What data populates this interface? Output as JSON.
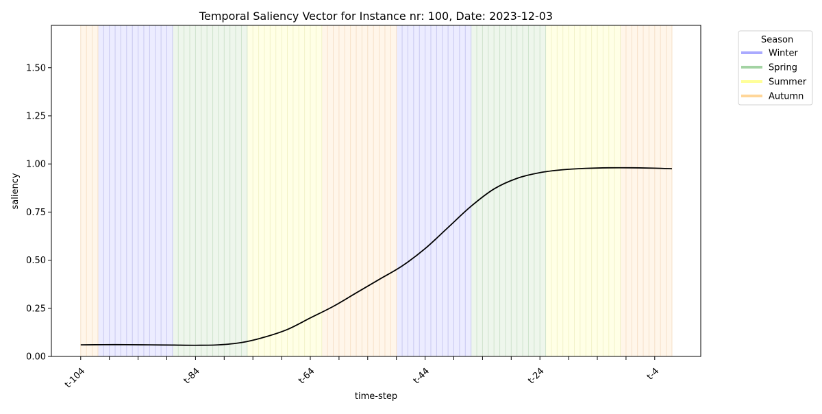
{
  "chart_data": {
    "type": "line",
    "title": "Temporal Saliency Vector for Instance nr: 100, Date: 2023-12-03",
    "xlabel": "time-step",
    "ylabel": "saliency",
    "ylim": [
      0,
      1.72
    ],
    "xlim": [
      -109,
      -2
    ],
    "yticks": [
      "0.00",
      "0.25",
      "0.50",
      "0.75",
      "1.00",
      "1.25",
      "1.50"
    ],
    "ytick_values": [
      0,
      0.25,
      0.5,
      0.75,
      1.0,
      1.25,
      1.5
    ],
    "xticks": [
      {
        "value": -104,
        "label": "t-104"
      },
      {
        "value": -99,
        "label": ""
      },
      {
        "value": -94,
        "label": ""
      },
      {
        "value": -89,
        "label": ""
      },
      {
        "value": -84,
        "label": "t-84"
      },
      {
        "value": -79,
        "label": ""
      },
      {
        "value": -74,
        "label": ""
      },
      {
        "value": -69,
        "label": ""
      },
      {
        "value": -64,
        "label": "t-64"
      },
      {
        "value": -59,
        "label": ""
      },
      {
        "value": -54,
        "label": ""
      },
      {
        "value": -49,
        "label": ""
      },
      {
        "value": -44,
        "label": "t-44"
      },
      {
        "value": -39,
        "label": ""
      },
      {
        "value": -34,
        "label": ""
      },
      {
        "value": -29,
        "label": ""
      },
      {
        "value": -24,
        "label": "t-24"
      },
      {
        "value": -19,
        "label": ""
      },
      {
        "value": -14,
        "label": ""
      },
      {
        "value": -9,
        "label": ""
      },
      {
        "value": -4,
        "label": "t-4"
      }
    ],
    "legend": {
      "title": "Season",
      "placement": "outside-right",
      "entries": [
        {
          "name": "Winter",
          "color": "#aaaaff"
        },
        {
          "name": "Spring",
          "color": "#a3d3a3"
        },
        {
          "name": "Summer",
          "color": "#ffff99"
        },
        {
          "name": "Autumn",
          "color": "#ffd699"
        }
      ]
    },
    "season_bands": [
      {
        "season": "Autumn",
        "start": -104,
        "end": -101
      },
      {
        "season": "Winter",
        "start": -101,
        "end": -88
      },
      {
        "season": "Spring",
        "start": -88,
        "end": -75
      },
      {
        "season": "Summer",
        "start": -75,
        "end": -62
      },
      {
        "season": "Autumn",
        "start": -62,
        "end": -49
      },
      {
        "season": "Winter",
        "start": -49,
        "end": -36
      },
      {
        "season": "Spring",
        "start": -36,
        "end": -23
      },
      {
        "season": "Summer",
        "start": -23,
        "end": -10
      },
      {
        "season": "Autumn",
        "start": -10,
        "end": -1
      }
    ],
    "season_colors": {
      "Winter": "#e0e0ff",
      "Spring": "#e3f0e0",
      "Summer": "#ffffd6",
      "Autumn": "#fff0dc"
    },
    "series": [
      {
        "color": "#000000",
        "x": [
          -104,
          -100,
          -96,
          -92,
          -88,
          -84,
          -80,
          -76,
          -72,
          -68,
          -64,
          -60,
          -56,
          -52,
          -48,
          -44,
          -40,
          -36,
          -32,
          -28,
          -24,
          -20,
          -16,
          -12,
          -8,
          -4,
          -1
        ],
        "y": [
          0.06,
          0.061,
          0.061,
          0.06,
          0.059,
          0.058,
          0.06,
          0.072,
          0.1,
          0.14,
          0.2,
          0.26,
          0.33,
          0.4,
          0.47,
          0.56,
          0.67,
          0.78,
          0.87,
          0.925,
          0.955,
          0.97,
          0.977,
          0.98,
          0.98,
          0.978,
          0.975
        ]
      }
    ]
  }
}
